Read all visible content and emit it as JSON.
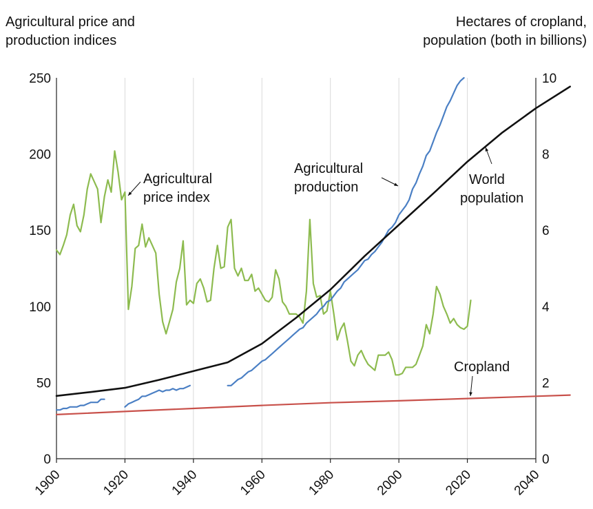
{
  "chart_data": {
    "type": "line",
    "left_axis_title": [
      "Agricultural price and",
      "production indices"
    ],
    "right_axis_title": [
      "Hectares of cropland,",
      "population (both in billions)"
    ],
    "xlim": [
      1900,
      2040
    ],
    "x_ticks": [
      "1900",
      "1920",
      "1940",
      "1960",
      "1980",
      "2000",
      "2020",
      "2040"
    ],
    "left_ylim": [
      0,
      250
    ],
    "left_ticks": [
      "0",
      "50",
      "100",
      "150",
      "200",
      "250"
    ],
    "right_ylim": [
      0,
      10
    ],
    "right_ticks": [
      "0",
      "2",
      "4",
      "6",
      "8",
      "10"
    ],
    "grid": "vertical gridlines at x ticks",
    "annotations": {
      "price": [
        "Agricultural",
        "price index"
      ],
      "production": [
        "Agricultural",
        "production"
      ],
      "population": [
        "World",
        "population"
      ],
      "cropland": [
        "Cropland"
      ]
    },
    "series": [
      {
        "name": "Agricultural price index",
        "axis": "left",
        "color": "#8dbb4f",
        "segments": [
          [
            [
              1900,
              137
            ],
            [
              1901,
              134
            ],
            [
              1902,
              140
            ],
            [
              1903,
              147
            ],
            [
              1904,
              160
            ],
            [
              1905,
              167
            ],
            [
              1906,
              153
            ],
            [
              1907,
              149
            ],
            [
              1908,
              160
            ],
            [
              1909,
              177
            ],
            [
              1910,
              187
            ],
            [
              1911,
              182
            ],
            [
              1912,
              177
            ],
            [
              1913,
              155
            ],
            [
              1914,
              172
            ],
            [
              1915,
              183
            ],
            [
              1916,
              175
            ],
            [
              1917,
              202
            ],
            [
              1918,
              188
            ],
            [
              1919,
              170
            ],
            [
              1920,
              175
            ],
            [
              1921,
              98
            ],
            [
              1922,
              113
            ],
            [
              1923,
              138
            ],
            [
              1924,
              140
            ],
            [
              1925,
              154
            ],
            [
              1926,
              139
            ],
            [
              1927,
              145
            ],
            [
              1928,
              140
            ],
            [
              1929,
              135
            ],
            [
              1930,
              108
            ],
            [
              1931,
              90
            ],
            [
              1932,
              82
            ],
            [
              1933,
              90
            ],
            [
              1934,
              98
            ],
            [
              1935,
              116
            ],
            [
              1936,
              125
            ],
            [
              1937,
              143
            ],
            [
              1938,
              101
            ],
            [
              1939,
              104
            ],
            [
              1940,
              102
            ],
            [
              1941,
              115
            ],
            [
              1942,
              118
            ],
            [
              1943,
              112
            ],
            [
              1944,
              103
            ],
            [
              1945,
              104
            ],
            [
              1946,
              125
            ],
            [
              1947,
              140
            ],
            [
              1948,
              125
            ],
            [
              1949,
              126
            ],
            [
              1950,
              152
            ],
            [
              1951,
              157
            ],
            [
              1952,
              125
            ],
            [
              1953,
              120
            ],
            [
              1954,
              125
            ],
            [
              1955,
              117
            ],
            [
              1956,
              117
            ],
            [
              1957,
              121
            ],
            [
              1958,
              110
            ],
            [
              1959,
              112
            ],
            [
              1960,
              108
            ],
            [
              1961,
              104
            ],
            [
              1962,
              103
            ],
            [
              1963,
              106
            ],
            [
              1964,
              124
            ],
            [
              1965,
              118
            ],
            [
              1966,
              103
            ],
            [
              1967,
              100
            ],
            [
              1968,
              95
            ],
            [
              1969,
              95
            ],
            [
              1970,
              95
            ],
            [
              1971,
              93
            ],
            [
              1972,
              89
            ],
            [
              1973,
              110
            ],
            [
              1974,
              157
            ],
            [
              1975,
              115
            ],
            [
              1976,
              106
            ],
            [
              1977,
              107
            ],
            [
              1978,
              95
            ],
            [
              1979,
              97
            ],
            [
              1980,
              110
            ],
            [
              1981,
              95
            ],
            [
              1982,
              78
            ],
            [
              1983,
              85
            ],
            [
              1984,
              89
            ],
            [
              1985,
              77
            ],
            [
              1986,
              64
            ],
            [
              1987,
              61
            ],
            [
              1988,
              68
            ],
            [
              1989,
              71
            ],
            [
              1990,
              66
            ],
            [
              1991,
              62
            ],
            [
              1992,
              60
            ],
            [
              1993,
              58
            ],
            [
              1994,
              68
            ],
            [
              1995,
              68
            ],
            [
              1996,
              68
            ],
            [
              1997,
              70
            ],
            [
              1998,
              65
            ],
            [
              1999,
              55
            ],
            [
              2000,
              55
            ],
            [
              2001,
              56
            ],
            [
              2002,
              60
            ],
            [
              2003,
              60
            ],
            [
              2004,
              60
            ],
            [
              2005,
              62
            ],
            [
              2006,
              68
            ],
            [
              2007,
              74
            ],
            [
              2008,
              88
            ],
            [
              2009,
              82
            ],
            [
              2010,
              95
            ],
            [
              2011,
              113
            ],
            [
              2012,
              108
            ],
            [
              2013,
              100
            ],
            [
              2014,
              95
            ],
            [
              2015,
              89
            ],
            [
              2016,
              92
            ],
            [
              2017,
              88
            ],
            [
              2018,
              86
            ],
            [
              2019,
              85
            ],
            [
              2020,
              87
            ],
            [
              2021,
              104
            ]
          ]
        ]
      },
      {
        "name": "Agricultural production",
        "axis": "left",
        "color": "#4a7fc4",
        "segments": [
          [
            [
              1900,
              32
            ],
            [
              1901,
              32
            ],
            [
              1902,
              33
            ],
            [
              1903,
              33
            ],
            [
              1904,
              34
            ],
            [
              1905,
              34
            ],
            [
              1906,
              34
            ],
            [
              1907,
              35
            ],
            [
              1908,
              35
            ],
            [
              1909,
              36
            ],
            [
              1910,
              37
            ],
            [
              1911,
              37
            ],
            [
              1912,
              37
            ],
            [
              1913,
              39
            ],
            [
              1914,
              39
            ]
          ],
          [
            [
              1920,
              34
            ],
            [
              1921,
              36
            ],
            [
              1922,
              37
            ],
            [
              1923,
              38
            ],
            [
              1924,
              39
            ],
            [
              1925,
              41
            ],
            [
              1926,
              41
            ],
            [
              1927,
              42
            ],
            [
              1928,
              43
            ],
            [
              1929,
              44
            ],
            [
              1930,
              45
            ],
            [
              1931,
              44
            ],
            [
              1932,
              45
            ],
            [
              1933,
              45
            ],
            [
              1934,
              46
            ],
            [
              1935,
              45
            ],
            [
              1936,
              46
            ],
            [
              1937,
              46
            ],
            [
              1938,
              47
            ],
            [
              1939,
              48
            ]
          ],
          [
            [
              1950,
              48
            ],
            [
              1951,
              48
            ],
            [
              1952,
              50
            ],
            [
              1953,
              52
            ],
            [
              1954,
              53
            ],
            [
              1955,
              55
            ],
            [
              1956,
              57
            ],
            [
              1957,
              58
            ],
            [
              1958,
              60
            ],
            [
              1959,
              62
            ],
            [
              1960,
              64
            ],
            [
              1961,
              65
            ],
            [
              1962,
              67
            ],
            [
              1963,
              69
            ],
            [
              1964,
              71
            ],
            [
              1965,
              73
            ],
            [
              1966,
              75
            ],
            [
              1967,
              77
            ],
            [
              1968,
              79
            ],
            [
              1969,
              81
            ],
            [
              1970,
              83
            ],
            [
              1971,
              85
            ],
            [
              1972,
              86
            ],
            [
              1973,
              89
            ],
            [
              1974,
              91
            ],
            [
              1975,
              93
            ],
            [
              1976,
              95
            ],
            [
              1977,
              98
            ],
            [
              1978,
              100
            ],
            [
              1979,
              103
            ],
            [
              1980,
              104
            ],
            [
              1981,
              107
            ],
            [
              1982,
              110
            ],
            [
              1983,
              112
            ],
            [
              1984,
              116
            ],
            [
              1985,
              118
            ],
            [
              1986,
              120
            ],
            [
              1987,
              122
            ],
            [
              1988,
              124
            ],
            [
              1989,
              127
            ],
            [
              1990,
              130
            ],
            [
              1991,
              131
            ],
            [
              1992,
              134
            ],
            [
              1993,
              136
            ],
            [
              1994,
              139
            ],
            [
              1995,
              142
            ],
            [
              1996,
              146
            ],
            [
              1997,
              150
            ],
            [
              1998,
              152
            ],
            [
              1999,
              155
            ],
            [
              2000,
              160
            ],
            [
              2001,
              163
            ],
            [
              2002,
              166
            ],
            [
              2003,
              170
            ],
            [
              2004,
              177
            ],
            [
              2005,
              181
            ],
            [
              2006,
              187
            ],
            [
              2007,
              192
            ],
            [
              2008,
              199
            ],
            [
              2009,
              202
            ],
            [
              2010,
              208
            ],
            [
              2011,
              214
            ],
            [
              2012,
              219
            ],
            [
              2013,
              225
            ],
            [
              2014,
              231
            ],
            [
              2015,
              235
            ],
            [
              2016,
              240
            ],
            [
              2017,
              245
            ],
            [
              2018,
              248
            ],
            [
              2019,
              250
            ]
          ]
        ]
      },
      {
        "name": "World population",
        "axis": "right",
        "color": "#111111",
        "segments": [
          [
            [
              1900,
              1.65
            ],
            [
              1910,
              1.75
            ],
            [
              1920,
              1.86
            ],
            [
              1930,
              2.07
            ],
            [
              1940,
              2.3
            ],
            [
              1950,
              2.53
            ],
            [
              1960,
              3.02
            ],
            [
              1970,
              3.7
            ],
            [
              1980,
              4.44
            ],
            [
              1990,
              5.32
            ],
            [
              2000,
              6.14
            ],
            [
              2010,
              6.96
            ],
            [
              2020,
              7.8
            ],
            [
              2030,
              8.55
            ],
            [
              2040,
              9.2
            ],
            [
              2050,
              9.77
            ]
          ]
        ]
      },
      {
        "name": "Cropland",
        "axis": "right",
        "color": "#c8504a",
        "segments": [
          [
            [
              1900,
              1.16
            ],
            [
              1920,
              1.24
            ],
            [
              1940,
              1.32
            ],
            [
              1960,
              1.4
            ],
            [
              1980,
              1.47
            ],
            [
              2000,
              1.52
            ],
            [
              2020,
              1.58
            ],
            [
              2040,
              1.64
            ],
            [
              2050,
              1.67
            ]
          ]
        ]
      }
    ]
  }
}
